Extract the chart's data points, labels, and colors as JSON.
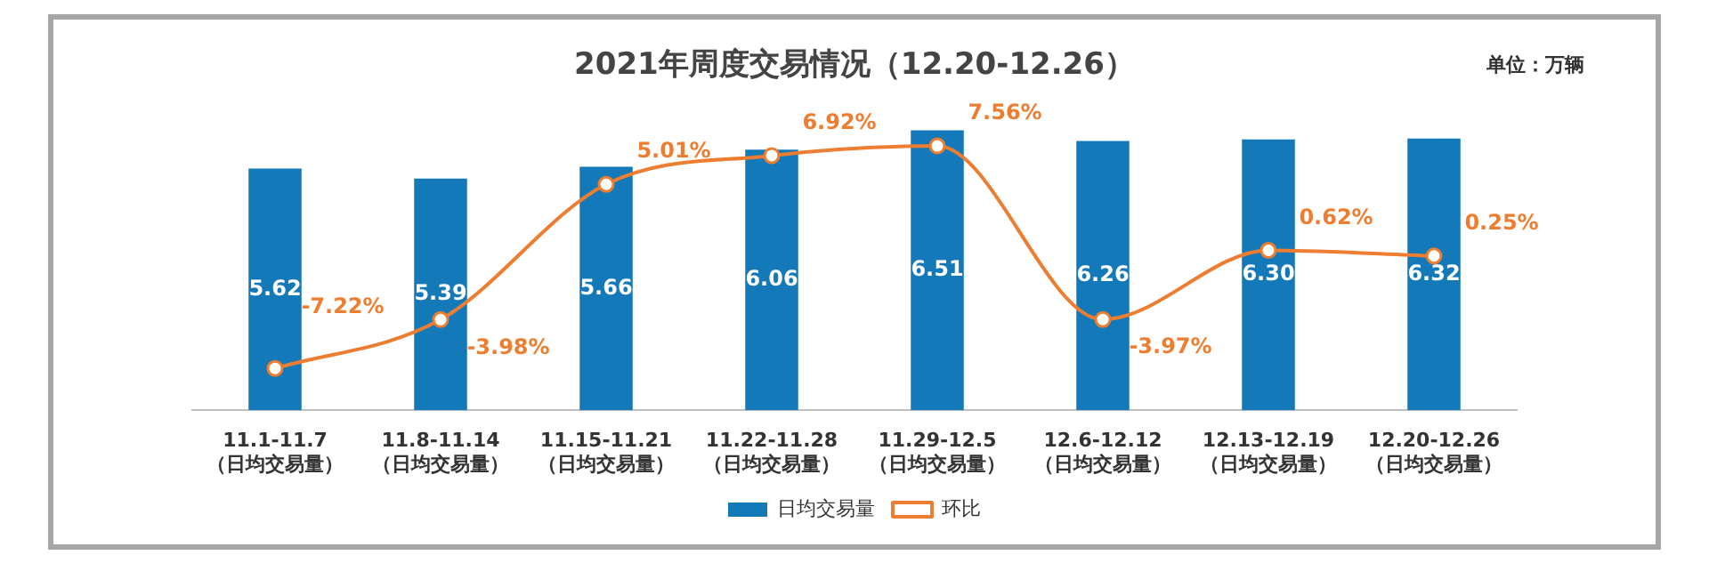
{
  "chart_data": {
    "type": "bar",
    "title": "2021年周度交易情况（12.20-12.26）",
    "annotations": [
      "单位：万辆"
    ],
    "categories": [
      "11.1-11.7\n（日均交易量）",
      "11.8-11.14\n（日均交易量）",
      "11.15-11.21\n（日均交易量）",
      "11.22-11.28\n（日均交易量）",
      "11.29-12.5\n（日均交易量）",
      "12.6-12.12\n（日均交易量）",
      "12.13-12.19\n（日均交易量）",
      "12.20-12.26\n（日均交易量）"
    ],
    "series": [
      {
        "name": "日均交易量",
        "color": "#1479b8",
        "values": [
          5.62,
          5.39,
          5.66,
          6.06,
          6.51,
          6.26,
          6.3,
          6.32
        ],
        "value_labels": [
          "5.62",
          "5.39",
          "5.66",
          "6.06",
          "6.51",
          "6.26",
          "6.30",
          "6.32"
        ]
      },
      {
        "name": "环比",
        "type": "line",
        "axis": "y2",
        "color": "#ed7d31",
        "values": [
          -7.22,
          -3.98,
          5.01,
          6.92,
          7.56,
          -3.97,
          0.62,
          0.25
        ],
        "value_labels": [
          "-7.22%",
          "-3.98%",
          "5.01%",
          "6.92%",
          "7.56%",
          "-3.97%",
          "0.62%",
          "0.25%"
        ]
      }
    ],
    "tick_labels": "x",
    "grid": false,
    "legend": "bottom",
    "marker": "circle",
    "line_style": "solid"
  }
}
